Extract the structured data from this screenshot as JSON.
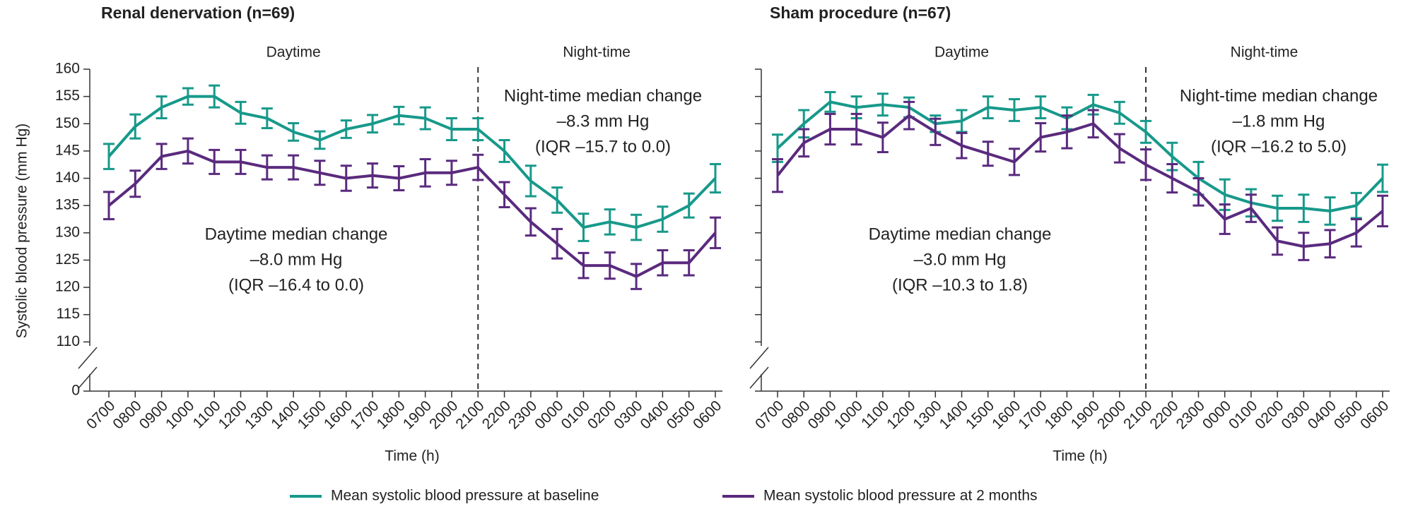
{
  "chart_data": [
    {
      "type": "line",
      "title": "Renal denervation (n=69)",
      "period_labels": [
        "Daytime",
        "Night-time"
      ],
      "divider": "2100",
      "annotations": [
        [
          "Daytime median change",
          "–8.0 mm Hg",
          "(IQR –16.4 to 0.0)"
        ],
        [
          "Night-time median change",
          "–8.3 mm Hg",
          "(IQR –15.7 to 0.0)"
        ]
      ],
      "xlabel": "Time (h)",
      "ylabel": "Systolic blood pressure (mm Hg)",
      "categories": [
        "0700",
        "0800",
        "0900",
        "1000",
        "1100",
        "1200",
        "1300",
        "1400",
        "1500",
        "1600",
        "1700",
        "1800",
        "1900",
        "2000",
        "2100",
        "2200",
        "2300",
        "0000",
        "0100",
        "0200",
        "0300",
        "0400",
        "0500",
        "0600"
      ],
      "ylim": [
        101.5,
        160
      ],
      "axis_break": true,
      "yticks": [
        0,
        110,
        115,
        120,
        125,
        130,
        135,
        140,
        145,
        150,
        155,
        160
      ],
      "series": [
        {
          "name": "Mean systolic blood pressure at baseline",
          "color": "#17998a",
          "values": [
            144,
            149.5,
            153,
            155,
            155,
            152,
            151,
            148.5,
            147,
            149,
            150,
            151.5,
            151,
            149,
            149,
            145,
            139.5,
            136,
            131,
            132,
            131,
            132.5,
            135,
            140
          ],
          "errors": [
            2.3,
            2.2,
            2,
            1.5,
            2,
            2,
            1.8,
            1.6,
            1.6,
            1.6,
            1.6,
            1.6,
            2,
            2,
            2,
            2,
            2.8,
            2.3,
            2.5,
            2.3,
            2.3,
            2.3,
            2.2,
            2.6
          ]
        },
        {
          "name": "Mean systolic blood pressure at 2 months",
          "color": "#5a2a7e",
          "values": [
            135,
            139,
            144,
            145,
            143,
            143,
            142,
            142,
            141,
            140,
            140.5,
            140,
            141,
            141,
            142,
            137,
            132,
            128,
            124,
            124,
            122,
            124.5,
            124.5,
            130
          ],
          "errors": [
            2.5,
            2.4,
            2.3,
            2.3,
            2.2,
            2.2,
            2.2,
            2.2,
            2.2,
            2.3,
            2.2,
            2.2,
            2.5,
            2.2,
            2.3,
            2.3,
            2.5,
            2.7,
            2.3,
            2.4,
            2.3,
            2.3,
            2.3,
            2.8
          ]
        }
      ]
    },
    {
      "type": "line",
      "title": "Sham procedure (n=67)",
      "period_labels": [
        "Daytime",
        "Night-time"
      ],
      "divider": "2100",
      "annotations": [
        [
          "Daytime median change",
          "–3.0 mm Hg",
          "(IQR –10.3 to 1.8)"
        ],
        [
          "Night-time median change",
          "–1.8 mm Hg",
          "(IQR –16.2 to 5.0)"
        ]
      ],
      "xlabel": "Time (h)",
      "categories": [
        "0700",
        "0800",
        "0900",
        "1000",
        "1100",
        "1200",
        "1300",
        "1400",
        "1500",
        "1600",
        "1700",
        "1800",
        "1900",
        "2000",
        "2100",
        "2200",
        "2300",
        "0000",
        "0100",
        "0200",
        "0300",
        "0400",
        "0500",
        "0600"
      ],
      "ylim": [
        101.5,
        160
      ],
      "axis_break": true,
      "yticks": [
        0,
        110,
        115,
        120,
        125,
        130,
        135,
        140,
        145,
        150,
        155,
        160
      ],
      "show_ytick_labels": false,
      "series": [
        {
          "color": "#17998a",
          "values": [
            145.5,
            150,
            154,
            153,
            153.5,
            153,
            150,
            150.5,
            153,
            152.5,
            153,
            151,
            153.5,
            152,
            148.5,
            144,
            140,
            137,
            135.5,
            134.5,
            134.5,
            134,
            135,
            140
          ],
          "errors": [
            2.5,
            2.5,
            1.8,
            2,
            2,
            1.8,
            1.5,
            2,
            2,
            2,
            2,
            2,
            1.8,
            2,
            2,
            2.5,
            3,
            2.8,
            2.5,
            2.3,
            2.5,
            2.5,
            2.3,
            2.5
          ]
        },
        {
          "color": "#5a2a7e",
          "values": [
            140.5,
            146.5,
            149,
            149,
            147.5,
            151.5,
            148.5,
            146,
            144.5,
            143,
            147.5,
            148.5,
            150,
            145.5,
            142.5,
            140,
            137.5,
            132.5,
            134.5,
            128.5,
            127.5,
            128,
            130,
            134
          ],
          "errors": [
            3,
            2.5,
            2.8,
            2.8,
            2.7,
            2.5,
            2.4,
            2.3,
            2.2,
            2.4,
            2.6,
            3,
            2.5,
            2.6,
            2.8,
            2.6,
            2.5,
            2.7,
            2.5,
            2.5,
            2.5,
            2.5,
            2.5,
            2.8
          ]
        }
      ]
    }
  ]
}
